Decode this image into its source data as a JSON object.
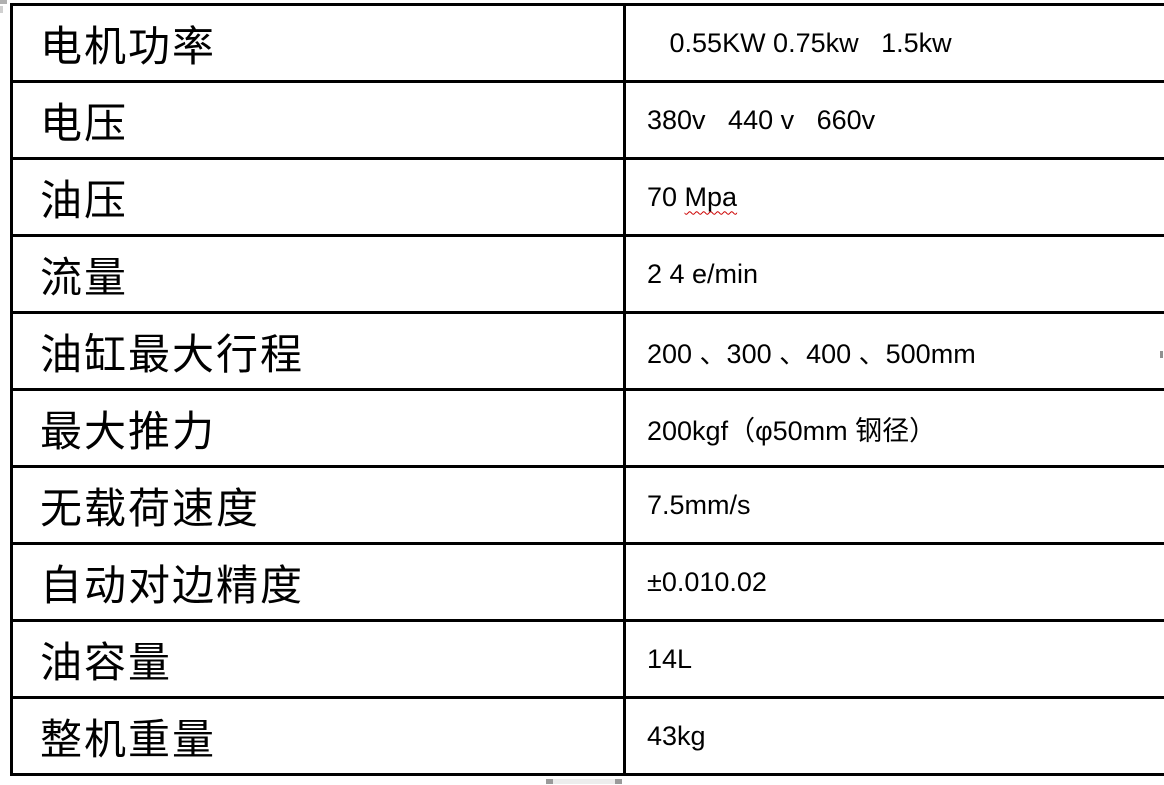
{
  "table": {
    "border_color": "#000000",
    "spellcheck_color": "#cc0000",
    "rows": [
      {
        "label": "电机功率",
        "value": "   0.55KW 0.75kw   1.5kw"
      },
      {
        "label": "电压",
        "value": "380v   440 v   660v"
      },
      {
        "label": "油压",
        "value_head": "70 ",
        "value_misspelled": "Mpa"
      },
      {
        "label": "流量",
        "value": "2 4 e/min"
      },
      {
        "label": "油缸最大行程",
        "value": "200 、300 、400 、500mm"
      },
      {
        "label": "最大推力",
        "value": "200kgf（φ50mm 钢径）"
      },
      {
        "label": "无载荷速度",
        "value": "7.5mm/s"
      },
      {
        "label": "自动对边精度",
        "value": "±0.010.02"
      },
      {
        "label": "油容量",
        "value": "14L"
      },
      {
        "label": "整机重量",
        "value": "43kg"
      }
    ]
  }
}
